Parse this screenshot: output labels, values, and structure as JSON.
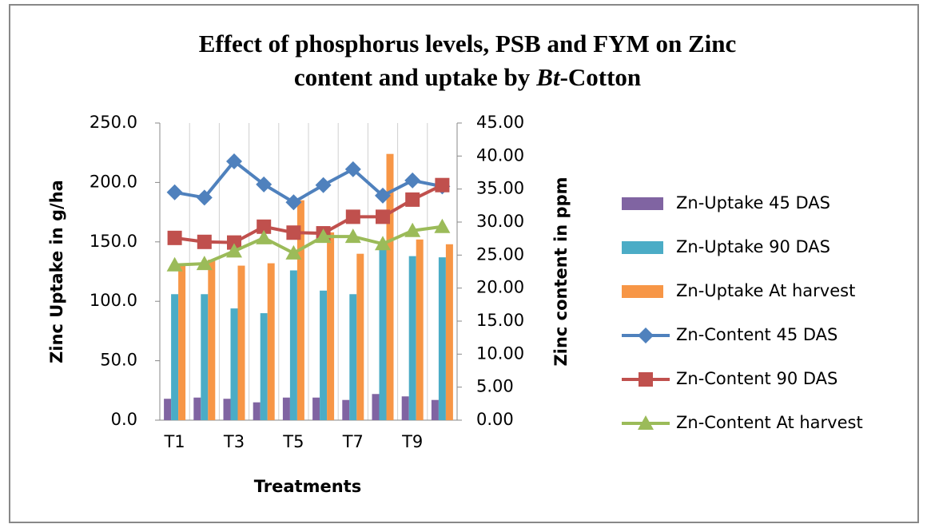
{
  "chart_data": {
    "type": "bar",
    "title": [
      "Effect of phosphorus levels, PSB and FYM on Zinc",
      "content and uptake by",
      "Bt",
      "-Cotton"
    ],
    "x_label": "Treatments",
    "y_label": "Zinc Uptake in g/ha",
    "y2_label": "Zinc content in ppm",
    "categories": [
      "T1",
      null,
      "T3",
      null,
      "T5",
      null,
      "T7",
      null,
      "T9",
      null
    ],
    "ylim": [
      0,
      250
    ],
    "yticks": [
      {
        "value": 0,
        "label": "0.0"
      },
      {
        "value": 50,
        "label": "50.0"
      },
      {
        "value": 100,
        "label": "100.0"
      },
      {
        "value": 150,
        "label": "150.0"
      },
      {
        "value": 200,
        "label": "200.0"
      },
      {
        "value": 250,
        "label": "250.0"
      }
    ],
    "y2lim": [
      0,
      45
    ],
    "y2ticks": [
      {
        "value": 0,
        "label": "0.00"
      },
      {
        "value": 5,
        "label": "5.00"
      },
      {
        "value": 10,
        "label": "10.00"
      },
      {
        "value": 15,
        "label": "15.00"
      },
      {
        "value": 20,
        "label": "20.00"
      },
      {
        "value": 25,
        "label": "25.00"
      },
      {
        "value": 30,
        "label": "30.00"
      },
      {
        "value": 35,
        "label": "35.00"
      },
      {
        "value": 40,
        "label": "40.00"
      },
      {
        "value": 45,
        "label": "45.00"
      }
    ],
    "grid": "vertical",
    "legend": "right",
    "series": [
      {
        "name": "Zn-Uptake 45 DAS",
        "type": "bar",
        "color": "#8064a2",
        "values": [
          18,
          19,
          18,
          15,
          19,
          19,
          17,
          22,
          20,
          17
        ]
      },
      {
        "name": "Zn-Uptake 90 DAS",
        "type": "bar",
        "color": "#4bacc6",
        "values": [
          106,
          106,
          94,
          90,
          126,
          109,
          106,
          145,
          138,
          137
        ]
      },
      {
        "name": "Zn-Uptake At harvest",
        "type": "bar",
        "color": "#f79646",
        "values": [
          132,
          135,
          130,
          132,
          185,
          158,
          140,
          224,
          152,
          148
        ]
      },
      {
        "name": "Zn-Content 45 DAS",
        "type": "line",
        "axis": "y2",
        "marker": "diamond",
        "color": "#4f81bd",
        "values": [
          34.5,
          33.7,
          39.2,
          35.7,
          33.0,
          35.6,
          38.0,
          34.0,
          36.3,
          35.4
        ]
      },
      {
        "name": "Zn-Content 90 DAS",
        "type": "line",
        "axis": "y2",
        "marker": "square",
        "color": "#c0504d",
        "values": [
          27.6,
          27.0,
          26.9,
          29.3,
          28.4,
          28.3,
          30.8,
          30.8,
          33.4,
          35.6
        ]
      },
      {
        "name": "Zn-Content At harvest",
        "type": "line",
        "axis": "y2",
        "marker": "triangle",
        "color": "#9bbb59",
        "values": [
          23.5,
          23.7,
          25.6,
          27.6,
          25.3,
          27.8,
          27.8,
          26.7,
          28.7,
          29.3
        ]
      }
    ]
  }
}
